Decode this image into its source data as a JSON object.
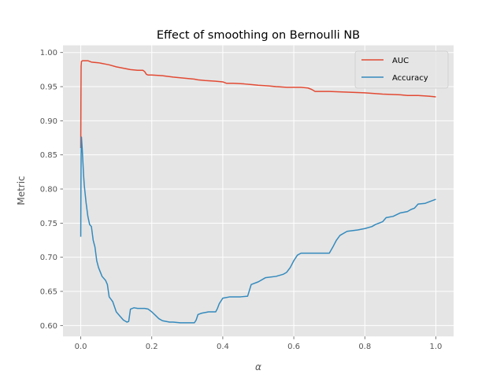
{
  "chart_data": {
    "type": "line",
    "title": "Effect of smoothing on Bernoulli NB",
    "xlabel": "α",
    "ylabel": "Metric",
    "xlim": [
      -0.05,
      1.05
    ],
    "ylim": [
      0.584,
      1.0105
    ],
    "xticks": [
      0.0,
      0.2,
      0.4,
      0.6,
      0.8,
      1.0
    ],
    "xtick_labels": [
      "0.0",
      "0.2",
      "0.4",
      "0.6",
      "0.8",
      "1.0"
    ],
    "yticks": [
      0.6,
      0.65,
      0.7,
      0.75,
      0.8,
      0.85,
      0.9,
      0.95,
      1.0
    ],
    "ytick_labels": [
      "0.60",
      "0.65",
      "0.70",
      "0.75",
      "0.80",
      "0.85",
      "0.90",
      "0.95",
      "1.00"
    ],
    "grid": true,
    "legend_position": "top-right",
    "series": [
      {
        "name": "AUC",
        "color": "#E24A33",
        "x": [
          0.0,
          0.0005,
          0.001,
          0.002,
          0.005,
          0.01,
          0.02,
          0.03,
          0.05,
          0.07,
          0.08,
          0.1,
          0.12,
          0.14,
          0.16,
          0.175,
          0.18,
          0.185,
          0.19,
          0.2,
          0.23,
          0.26,
          0.28,
          0.3,
          0.32,
          0.33,
          0.35,
          0.38,
          0.4,
          0.41,
          0.43,
          0.46,
          0.48,
          0.5,
          0.53,
          0.55,
          0.58,
          0.6,
          0.62,
          0.64,
          0.65,
          0.66,
          0.7,
          0.75,
          0.8,
          0.85,
          0.9,
          0.92,
          0.95,
          0.98,
          1.0
        ],
        "values": [
          0.86,
          0.93,
          0.98,
          0.987,
          0.988,
          0.988,
          0.988,
          0.986,
          0.985,
          0.983,
          0.982,
          0.979,
          0.977,
          0.975,
          0.974,
          0.974,
          0.972,
          0.968,
          0.967,
          0.967,
          0.966,
          0.964,
          0.963,
          0.962,
          0.961,
          0.96,
          0.959,
          0.958,
          0.957,
          0.955,
          0.955,
          0.954,
          0.953,
          0.952,
          0.951,
          0.95,
          0.949,
          0.949,
          0.949,
          0.948,
          0.946,
          0.943,
          0.943,
          0.942,
          0.941,
          0.939,
          0.938,
          0.937,
          0.937,
          0.936,
          0.935
        ]
      },
      {
        "name": "Accuracy",
        "color": "#348ABD",
        "x": [
          0.0,
          0.0005,
          0.001,
          0.002,
          0.004,
          0.006,
          0.008,
          0.01,
          0.015,
          0.02,
          0.025,
          0.03,
          0.035,
          0.04,
          0.045,
          0.05,
          0.06,
          0.07,
          0.075,
          0.08,
          0.09,
          0.1,
          0.11,
          0.12,
          0.13,
          0.135,
          0.14,
          0.15,
          0.16,
          0.18,
          0.19,
          0.2,
          0.21,
          0.22,
          0.23,
          0.25,
          0.26,
          0.28,
          0.3,
          0.32,
          0.325,
          0.33,
          0.34,
          0.36,
          0.38,
          0.385,
          0.39,
          0.4,
          0.42,
          0.45,
          0.47,
          0.48,
          0.5,
          0.52,
          0.55,
          0.57,
          0.58,
          0.59,
          0.6,
          0.61,
          0.62,
          0.65,
          0.7,
          0.71,
          0.72,
          0.73,
          0.75,
          0.78,
          0.8,
          0.82,
          0.83,
          0.85,
          0.86,
          0.88,
          0.9,
          0.92,
          0.93,
          0.94,
          0.95,
          0.97,
          0.98,
          1.0
        ],
        "values": [
          0.73,
          0.8,
          0.85,
          0.876,
          0.86,
          0.84,
          0.82,
          0.805,
          0.78,
          0.76,
          0.748,
          0.745,
          0.725,
          0.715,
          0.695,
          0.685,
          0.672,
          0.666,
          0.66,
          0.642,
          0.635,
          0.62,
          0.614,
          0.608,
          0.605,
          0.606,
          0.624,
          0.626,
          0.625,
          0.625,
          0.624,
          0.62,
          0.615,
          0.61,
          0.607,
          0.605,
          0.605,
          0.604,
          0.604,
          0.604,
          0.608,
          0.616,
          0.618,
          0.62,
          0.62,
          0.625,
          0.632,
          0.64,
          0.642,
          0.642,
          0.643,
          0.66,
          0.664,
          0.67,
          0.672,
          0.675,
          0.678,
          0.685,
          0.695,
          0.703,
          0.706,
          0.706,
          0.706,
          0.715,
          0.725,
          0.732,
          0.738,
          0.74,
          0.742,
          0.745,
          0.748,
          0.752,
          0.758,
          0.76,
          0.765,
          0.767,
          0.77,
          0.772,
          0.778,
          0.779,
          0.781,
          0.785
        ]
      }
    ]
  }
}
